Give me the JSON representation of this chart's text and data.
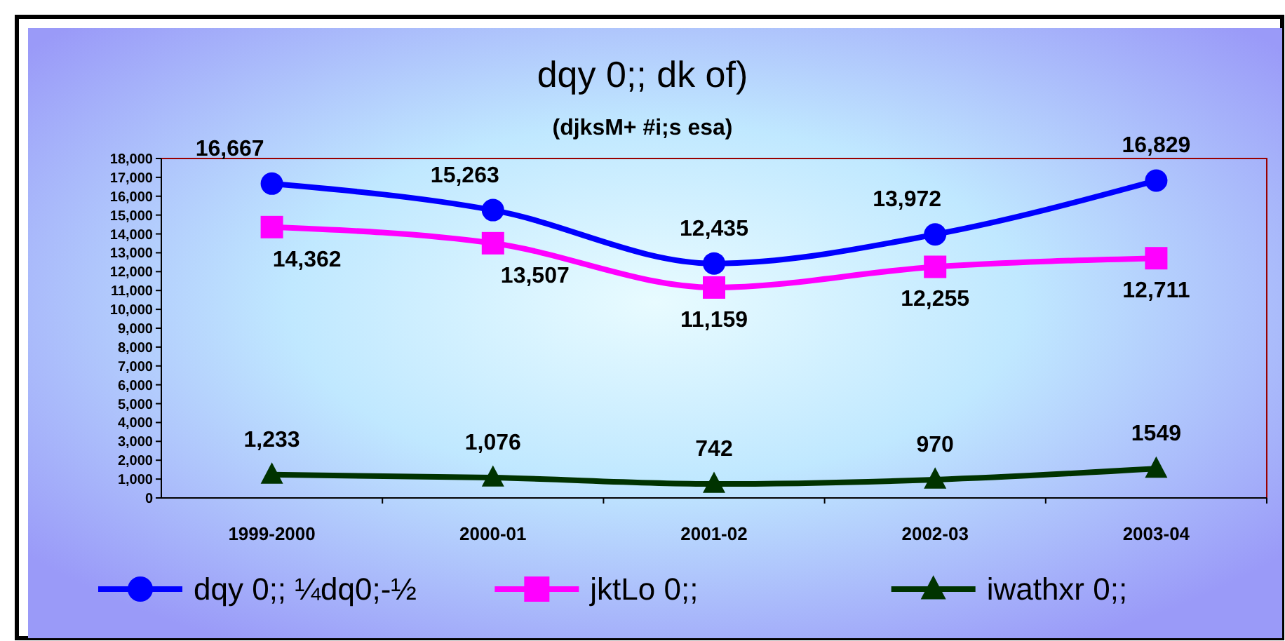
{
  "chart_data": {
    "type": "line",
    "title": "dqy 0;; dk of)",
    "subtitle": "(djksM+ #i;s esa)",
    "categories": [
      "1999-2000",
      "2000-01",
      "2001-02",
      "2002-03",
      "2003-04"
    ],
    "series": [
      {
        "name": "dqy 0;; ¼dq0;-½",
        "color": "#0000ff",
        "marker": "circle",
        "values": [
          16667,
          15263,
          12435,
          13972,
          16829
        ],
        "value_labels": [
          "16,667",
          "15,263",
          "12,435",
          "13,972",
          "16,829"
        ]
      },
      {
        "name": "jktLo 0;;",
        "color": "#ff00ff",
        "marker": "square",
        "values": [
          14362,
          13507,
          11159,
          12255,
          12711
        ],
        "value_labels": [
          "14,362",
          "13,507",
          "11,159",
          "12,255",
          "12,711"
        ]
      },
      {
        "name": "iwathxr 0;;",
        "color": "#003300",
        "marker": "triangle",
        "values": [
          1233,
          1076,
          742,
          970,
          1549
        ],
        "value_labels": [
          "1,233",
          "1,076",
          "742",
          "970",
          "1549"
        ]
      }
    ],
    "ylim": [
      0,
      18000
    ],
    "yticks": [
      {
        "value": 0,
        "label": "0"
      },
      {
        "value": 1000,
        "label": "1,000"
      },
      {
        "value": 2000,
        "label": "2,000"
      },
      {
        "value": 3000,
        "label": "3,000"
      },
      {
        "value": 4000,
        "label": "4,000"
      },
      {
        "value": 5000,
        "label": "5,000"
      },
      {
        "value": 6000,
        "label": "6,000"
      },
      {
        "value": 7000,
        "label": "7,000"
      },
      {
        "value": 8000,
        "label": "8,000"
      },
      {
        "value": 9000,
        "label": "9,000"
      },
      {
        "value": 10000,
        "label": "10,000"
      },
      {
        "value": 11000,
        "label": "11,000"
      },
      {
        "value": 12000,
        "label": "12,000"
      },
      {
        "value": 13000,
        "label": "13,000"
      },
      {
        "value": 14000,
        "label": "14,000"
      },
      {
        "value": 15000,
        "label": "15,000"
      },
      {
        "value": 16000,
        "label": "16,000"
      },
      {
        "value": 17000,
        "label": "17,000"
      },
      {
        "value": 18000,
        "label": "18,000"
      }
    ],
    "grid": false,
    "legend": "bottom"
  }
}
